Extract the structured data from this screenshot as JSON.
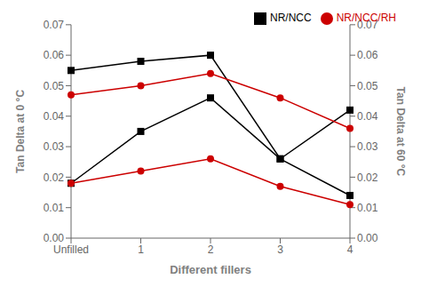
{
  "chart_data": {
    "type": "line",
    "xlabel": "Different fillers",
    "ylabel": "Tan Delta at  0 °C",
    "y2label": "Tan Delta at  60 °C",
    "categories": [
      "Unfilled",
      "1",
      "2",
      "3",
      "4"
    ],
    "series": [
      {
        "name": "NR/NCC",
        "color": "#000000",
        "marker": "square",
        "line_style": "solid",
        "values": [
          0.055,
          0.058,
          0.06,
          0.026,
          0.042
        ]
      },
      {
        "name": "NR/NCC/RH",
        "color": "#cc0000",
        "marker": "circle",
        "line_style": "solid",
        "values": [
          0.047,
          0.05,
          0.054,
          0.046,
          0.036
        ]
      },
      {
        "color": "#000000",
        "marker": "square",
        "line_style": "solid",
        "axis": "y2",
        "values": [
          0.018,
          0.035,
          0.046,
          0.026,
          0.014
        ]
      },
      {
        "color": "#cc0000",
        "marker": "circle",
        "line_style": "solid",
        "axis": "y2",
        "values": [
          0.018,
          0.022,
          0.026,
          0.017,
          0.011
        ]
      }
    ],
    "ylim": [
      0.0,
      0.07
    ],
    "yticks": [
      {
        "value": 0,
        "label": "0.00"
      },
      0.01,
      0.02,
      0.03,
      0.04,
      0.05,
      0.06,
      0.07
    ],
    "y2lim": [
      0.0,
      0.07
    ],
    "y2ticks": [
      {
        "value": 0,
        "label": "0.00"
      },
      0.01,
      0.02,
      0.03,
      0.04,
      0.05,
      0.06,
      0.07
    ],
    "grid": false,
    "legend": "upper right"
  }
}
